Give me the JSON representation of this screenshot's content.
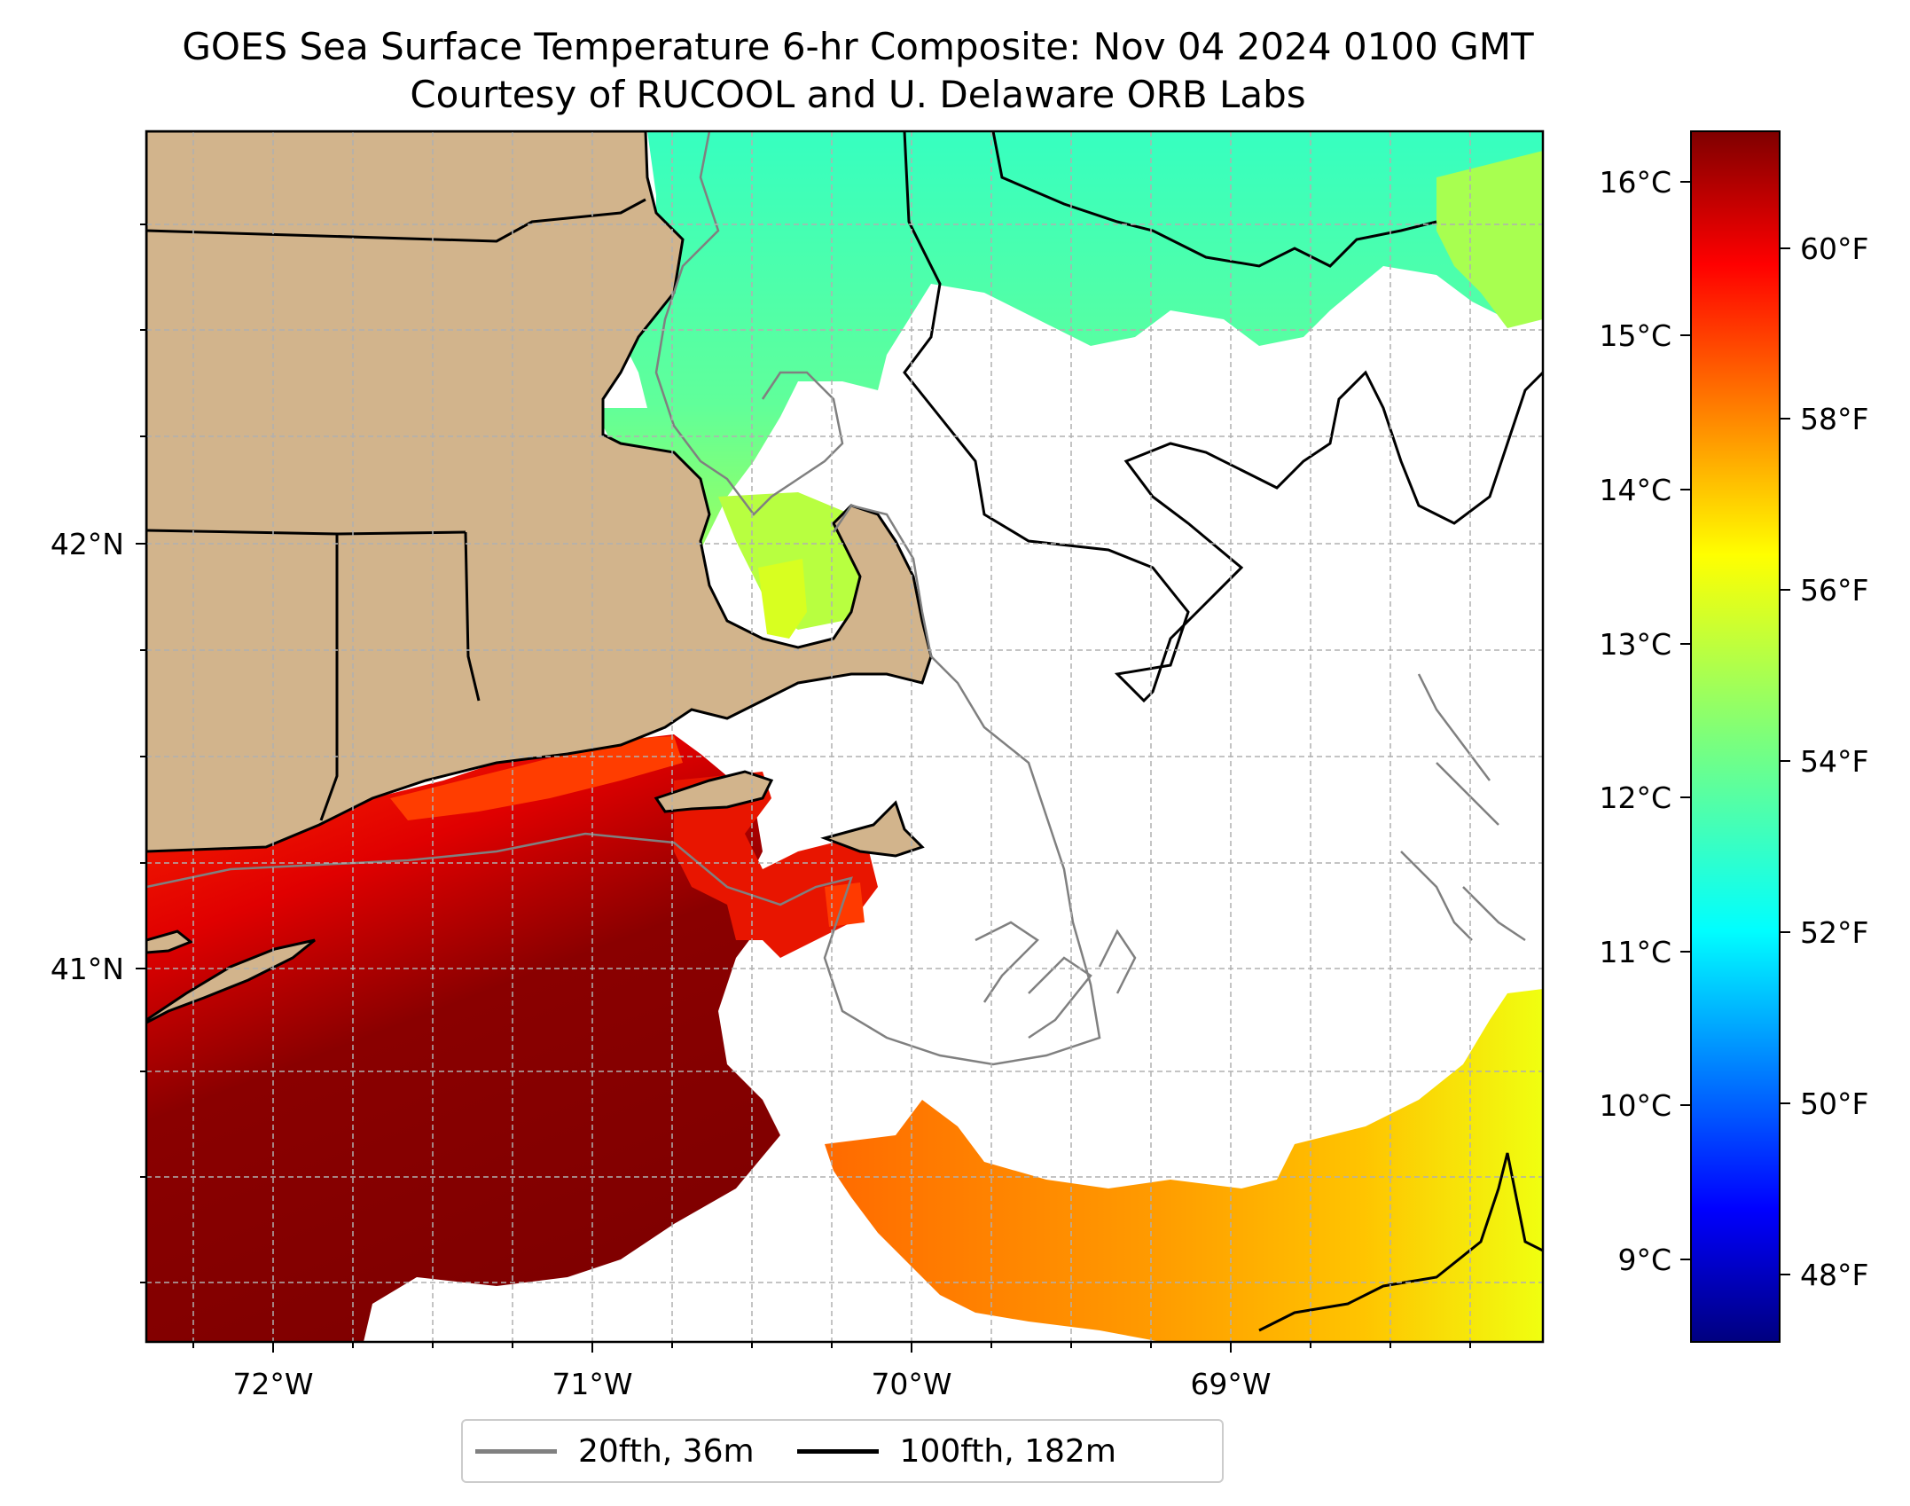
{
  "title": {
    "line1": "GOES Sea Surface Temperature 6-hr Composite: Nov 04 2024 0100 GMT",
    "line2": "Courtesy of RUCOOL and U. Delaware ORB Labs"
  },
  "map": {
    "lon_labels": [
      "72°W",
      "71°W",
      "70°W",
      "69°W"
    ],
    "lat_labels": [
      "42°N",
      "41°N"
    ],
    "colors": {
      "land": "#d2b48c",
      "ocean_nodata": "#ffffff",
      "gridline": "#b0b0b0",
      "contour_20fth": "#808080",
      "contour_100fth": "#000000"
    }
  },
  "colorbar": {
    "celsius_labels": [
      "16°C",
      "15°C",
      "14°C",
      "13°C",
      "12°C",
      "11°C",
      "10°C",
      "9°C"
    ],
    "fahrenheit_labels": [
      "60°F",
      "58°F",
      "56°F",
      "54°F",
      "52°F",
      "50°F",
      "48°F"
    ],
    "colormap": "jet"
  },
  "legend": {
    "items": [
      {
        "label": "20fth, 36m",
        "color": "#808080"
      },
      {
        "label": "100fth, 182m",
        "color": "#000000"
      }
    ]
  }
}
